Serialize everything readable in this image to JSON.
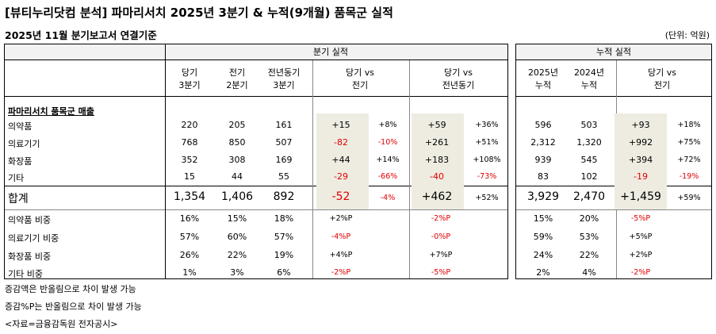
{
  "title": "[뷰티누리닷컴 분석] 파마리서치 2025년 3분기 & 누적(9개월) 품목군 실적",
  "subtitle": "2025년 11월 분기보고서 연결기준",
  "unit": "(단위: 억원)",
  "headers": {
    "quarterly_group": "분기 실적",
    "cumulative_group": "누적 실적",
    "cur_q": [
      "당기",
      "3분기"
    ],
    "prev_q": [
      "전기",
      "2분기"
    ],
    "yoy_q": [
      "전년동기",
      "3분기"
    ],
    "vs_prev": [
      "당기 vs",
      "전기"
    ],
    "vs_yoy": [
      "당기 vs",
      "전년동기"
    ],
    "cum_2025": [
      "2025년",
      "누적"
    ],
    "cum_2024": [
      "2024년",
      "누적"
    ],
    "cum_vs": [
      "당기 vs",
      "전기"
    ]
  },
  "section_title": "파마리서치 품목군 매출",
  "rows": [
    {
      "label": "의약품",
      "cur": "220",
      "prev": "205",
      "yoy": "161",
      "d_prev": "+15",
      "p_prev": "+8%",
      "d_yoy": "+59",
      "p_yoy": "+36%",
      "c25": "596",
      "c24": "503",
      "d_cum": "+93",
      "p_cum": "+18%"
    },
    {
      "label": "의료기기",
      "cur": "768",
      "prev": "850",
      "yoy": "507",
      "d_prev": "-82",
      "p_prev": "-10%",
      "d_yoy": "+261",
      "p_yoy": "+51%",
      "c25": "2,312",
      "c24": "1,320",
      "d_cum": "+992",
      "p_cum": "+75%"
    },
    {
      "label": "화장품",
      "cur": "352",
      "prev": "308",
      "yoy": "169",
      "d_prev": "+44",
      "p_prev": "+14%",
      "d_yoy": "+183",
      "p_yoy": "+108%",
      "c25": "939",
      "c24": "545",
      "d_cum": "+394",
      "p_cum": "+72%"
    },
    {
      "label": "기타",
      "cur": "15",
      "prev": "44",
      "yoy": "55",
      "d_prev": "-29",
      "p_prev": "-66%",
      "d_yoy": "-40",
      "p_yoy": "-73%",
      "c25": "83",
      "c24": "102",
      "d_cum": "-19",
      "p_cum": "-19%"
    }
  ],
  "total": {
    "label": "합계",
    "cur": "1,354",
    "prev": "1,406",
    "yoy": "892",
    "d_prev": "-52",
    "p_prev": "-4%",
    "d_yoy": "+462",
    "p_yoy": "+52%",
    "c25": "3,929",
    "c24": "2,470",
    "d_cum": "+1,459",
    "p_cum": "+59%"
  },
  "shares": [
    {
      "label": "의약품 비중",
      "cur": "16%",
      "prev": "15%",
      "yoy": "18%",
      "d_prev": "+2%P",
      "d_yoy": "-2%P",
      "c25": "15%",
      "c24": "20%",
      "d_cum": "-5%P"
    },
    {
      "label": "의료기기 비중",
      "cur": "57%",
      "prev": "60%",
      "yoy": "57%",
      "d_prev": "-4%P",
      "d_yoy": "-0%P",
      "c25": "59%",
      "c24": "53%",
      "d_cum": "+5%P"
    },
    {
      "label": "화장품 비중",
      "cur": "26%",
      "prev": "22%",
      "yoy": "19%",
      "d_prev": "+4%P",
      "d_yoy": "+7%P",
      "c25": "24%",
      "c24": "22%",
      "d_cum": "+2%P"
    },
    {
      "label": "기타 비중",
      "cur": "1%",
      "prev": "3%",
      "yoy": "6%",
      "d_prev": "-2%P",
      "d_yoy": "-5%P",
      "c25": "2%",
      "c24": "4%",
      "d_cum": "-2%P"
    }
  ],
  "notes": [
    "증감액은 반올림으로 차이 발생 가능",
    "증감%P는 반올림으로 차이 발생 가능",
    "<자료=금융감독원 전자공시>"
  ],
  "colors": {
    "negative": "#e00000",
    "header_band": "#f2f2f2",
    "highlight": "#eeece1"
  }
}
